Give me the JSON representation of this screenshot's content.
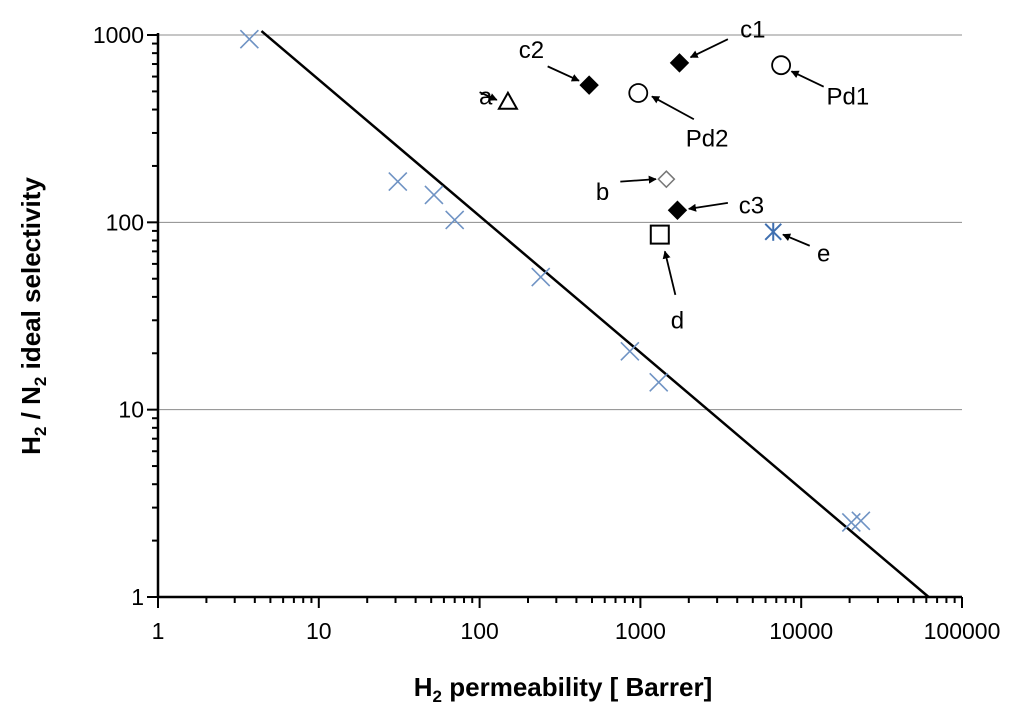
{
  "chart_data": {
    "type": "scatter",
    "title": "",
    "x_scale": "log",
    "y_scale": "log",
    "xlim": [
      1,
      100000
    ],
    "ylim": [
      1,
      1000
    ],
    "grid": "horizontal major lines",
    "xlabel": {
      "main": "H",
      "sub": "2",
      "rest": " permeability  [ Barrer]"
    },
    "ylabel": {
      "h": "H",
      "h_sub": "2",
      "mid": " / N",
      "n_sub": "2",
      "rest": " ideal selectivity"
    },
    "x_ticks": [
      {
        "value": 1,
        "label": "1"
      },
      {
        "value": 10,
        "label": "10"
      },
      {
        "value": 100,
        "label": "100"
      },
      {
        "value": 1000,
        "label": "1000"
      },
      {
        "value": 10000,
        "label": "10000"
      },
      {
        "value": 100000,
        "label": "100000"
      }
    ],
    "y_ticks": [
      {
        "value": 1,
        "label": "1"
      },
      {
        "value": 10,
        "label": "10"
      },
      {
        "value": 100,
        "label": "100"
      },
      {
        "value": 1000,
        "label": "1000"
      }
    ],
    "upper_bound_line": {
      "from": [
        4.4,
        1050
      ],
      "to": [
        62000,
        1
      ],
      "color": "#000000"
    },
    "literature_points": {
      "marker": "x",
      "color": "#6f93c4",
      "points": [
        [
          3.7,
          950
        ],
        [
          31,
          165
        ],
        [
          52,
          140
        ],
        [
          70,
          103
        ],
        [
          240,
          51
        ],
        [
          860,
          20.5
        ],
        [
          1300,
          14
        ],
        [
          20500,
          2.5
        ],
        [
          23500,
          2.55
        ]
      ]
    },
    "labeled_points": [
      {
        "label": "a",
        "x": 150,
        "y": 440,
        "marker": "open-triangle",
        "color": "#000000",
        "text_x": 120,
        "text_y": 470,
        "label_anchor": "end",
        "arrow_from": [
          100,
          495
        ],
        "arrow_to": [
          128,
          450
        ]
      },
      {
        "label": "b",
        "x": 1450,
        "y": 170,
        "marker": "open-diamond",
        "color": "#777777",
        "text_x": 640,
        "text_y": 145,
        "label_anchor": "end",
        "arrow_from": [
          750,
          165
        ],
        "arrow_to": [
          1250,
          170
        ]
      },
      {
        "label": "c1",
        "x": 1750,
        "y": 710,
        "marker": "filled-diamond",
        "color": "#000000",
        "text_x": 5000,
        "text_y": 1070,
        "label_anchor": "middle",
        "arrow_from": [
          3500,
          950
        ],
        "arrow_to": [
          2050,
          760
        ]
      },
      {
        "label": "c2",
        "x": 480,
        "y": 540,
        "marker": "filled-diamond",
        "color": "#000000",
        "text_x": 210,
        "text_y": 830,
        "label_anchor": "middle",
        "arrow_from": [
          265,
          680
        ],
        "arrow_to": [
          415,
          570
        ]
      },
      {
        "label": "c3",
        "x": 1700,
        "y": 116,
        "marker": "filled-diamond",
        "color": "#000000",
        "text_x": 4900,
        "text_y": 123,
        "label_anchor": "middle",
        "arrow_from": [
          3500,
          127
        ],
        "arrow_to": [
          2000,
          118
        ]
      },
      {
        "label": "d",
        "x": 1320,
        "y": 86,
        "marker": "open-square",
        "color": "#000000",
        "text_x": 1700,
        "text_y": 30,
        "label_anchor": "middle",
        "arrow_from": [
          1650,
          41
        ],
        "arrow_to": [
          1420,
          70
        ]
      },
      {
        "label": "e",
        "x": 6700,
        "y": 89,
        "marker": "asterisk",
        "color": "#3f6fb0",
        "text_x": 13800,
        "text_y": 68,
        "label_anchor": "middle",
        "arrow_from": [
          11300,
          75
        ],
        "arrow_to": [
          7700,
          86
        ]
      },
      {
        "label": "Pd1",
        "x": 7500,
        "y": 690,
        "marker": "open-circle",
        "color": "#000000",
        "text_x": 19500,
        "text_y": 470,
        "label_anchor": "middle",
        "arrow_from": [
          13800,
          530
        ],
        "arrow_to": [
          8700,
          640
        ]
      },
      {
        "label": "Pd2",
        "x": 970,
        "y": 490,
        "marker": "open-circle",
        "color": "#000000",
        "text_x": 2600,
        "text_y": 280,
        "label_anchor": "middle",
        "arrow_from": [
          2150,
          355
        ],
        "arrow_to": [
          1180,
          470
        ]
      }
    ]
  }
}
